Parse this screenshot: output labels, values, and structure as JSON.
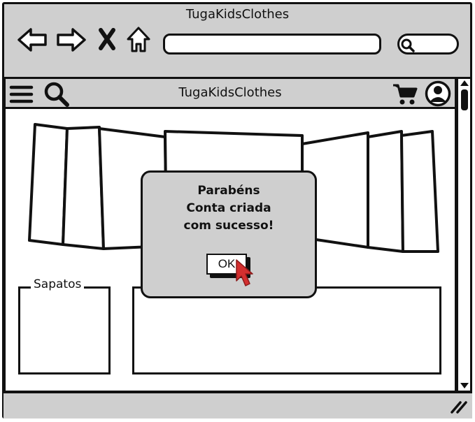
{
  "window": {
    "title": "TugaKidsClothes"
  },
  "browser": {
    "nav_icons": [
      "back-arrow-icon",
      "forward-arrow-icon",
      "close-icon",
      "home-icon"
    ],
    "url_value": "",
    "search_value": ""
  },
  "app": {
    "title": "TugaKidsClothes",
    "header_icons": [
      "hamburger-menu-icon",
      "search-icon",
      "cart-icon",
      "user-avatar-icon"
    ]
  },
  "content": {
    "sapatos_label": "Sapatos"
  },
  "dialog": {
    "line1": "Parabéns",
    "line2": "Conta criada",
    "line3": "com sucesso!",
    "ok_label": "OK"
  },
  "colors": {
    "chrome": "#cfcfcf",
    "stroke": "#111111",
    "cursor": "#d32f2f",
    "page": "#ffffff"
  }
}
